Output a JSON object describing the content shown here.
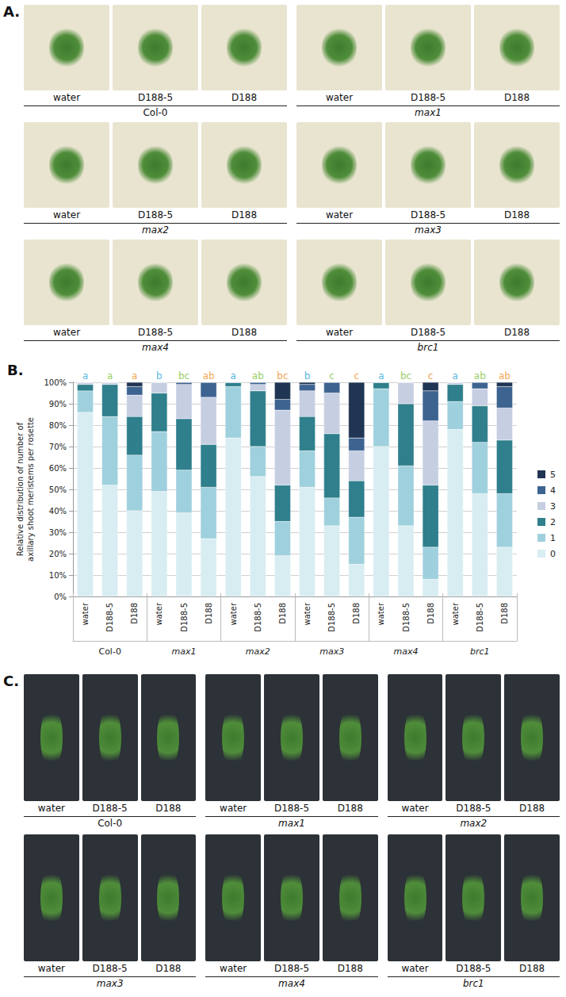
{
  "panel_a": {
    "label": "A.",
    "groups": [
      {
        "genotype": "Col-0",
        "treatments": [
          "water",
          "D188-5",
          "D188"
        ]
      },
      {
        "genotype": "max1",
        "treatments": [
          "water",
          "D188-5",
          "D188"
        ]
      },
      {
        "genotype": "max2",
        "treatments": [
          "water",
          "D188-5",
          "D188"
        ]
      },
      {
        "genotype": "max3",
        "treatments": [
          "water",
          "D188-5",
          "D188"
        ]
      },
      {
        "genotype": "max4",
        "treatments": [
          "water",
          "D188-5",
          "D188"
        ]
      },
      {
        "genotype": "brc1",
        "treatments": [
          "water",
          "D188-5",
          "D188"
        ]
      }
    ]
  },
  "chart_data": {
    "type": "bar",
    "title": "B.",
    "y_label": "Relative distribution of number of\naxillary shoot meristems per rosette",
    "categories": [
      "water",
      "D188-5",
      "D188",
      "water",
      "D188-5",
      "D188",
      "water",
      "D188-5",
      "D188",
      "water",
      "D188-5",
      "D188",
      "water",
      "D188-5",
      "D188",
      "water",
      "D188-5",
      "D188"
    ],
    "category_groups": [
      "Col-0",
      "max1",
      "max2",
      "max3",
      "max4",
      "brc1"
    ],
    "significance_letters": [
      "a",
      "a",
      "a",
      "b",
      "bc",
      "ab",
      "a",
      "ab",
      "bc",
      "b",
      "c",
      "c",
      "a",
      "bc",
      "c",
      "a",
      "ab",
      "ab"
    ],
    "stacked": true,
    "grid": true,
    "legend": "right",
    "ylim": [
      0,
      100
    ],
    "yticks": [
      {
        "value": 0,
        "label": "0%"
      },
      {
        "value": 10,
        "label": "10%"
      },
      {
        "value": 20,
        "label": "20%"
      },
      {
        "value": 30,
        "label": "30%"
      },
      {
        "value": 40,
        "label": "40%"
      },
      {
        "value": 50,
        "label": "50%"
      },
      {
        "value": 60,
        "label": "60%"
      },
      {
        "value": 70,
        "label": "70%"
      },
      {
        "value": 80,
        "label": "80%"
      },
      {
        "value": 90,
        "label": "90%"
      },
      {
        "value": 100,
        "label": "100%"
      }
    ],
    "series": [
      {
        "name": "0",
        "color": "#d8edf2",
        "values": [
          86,
          52,
          40,
          49,
          39,
          27,
          74,
          56,
          19,
          51,
          33,
          15,
          70,
          33,
          8,
          78,
          48,
          23
        ]
      },
      {
        "name": "1",
        "color": "#9fd0dd",
        "values": [
          10,
          32,
          26,
          28,
          20,
          24,
          24,
          14,
          16,
          17,
          13,
          22,
          27,
          28,
          15,
          13,
          24,
          25
        ]
      },
      {
        "name": "2",
        "color": "#2f7f8c",
        "values": [
          3,
          15,
          18,
          18,
          24,
          20,
          2,
          26,
          17,
          16,
          30,
          17,
          3,
          29,
          29,
          8,
          17,
          25
        ]
      },
      {
        "name": "3",
        "color": "#c6cee2",
        "values": [
          1,
          1,
          10,
          5,
          16,
          22,
          0,
          3,
          35,
          12,
          19,
          14,
          0,
          10,
          30,
          1,
          8,
          15
        ]
      },
      {
        "name": "4",
        "color": "#3d6390",
        "values": [
          0,
          0,
          4,
          0,
          1,
          7,
          0,
          1,
          5,
          3,
          5,
          6,
          0,
          0,
          14,
          0,
          3,
          10
        ]
      },
      {
        "name": "5",
        "color": "#1f3553",
        "values": [
          0,
          0,
          2,
          0,
          0,
          0,
          0,
          0,
          8,
          1,
          0,
          26,
          0,
          0,
          4,
          0,
          0,
          2
        ]
      }
    ]
  },
  "panel_c": {
    "label": "C.",
    "groups": [
      {
        "genotype": "Col-0",
        "treatments": [
          "water",
          "D188-5",
          "D188"
        ]
      },
      {
        "genotype": "max1",
        "treatments": [
          "water",
          "D188-5",
          "D188"
        ]
      },
      {
        "genotype": "max2",
        "treatments": [
          "water",
          "D188-5",
          "D188"
        ]
      },
      {
        "genotype": "max3",
        "treatments": [
          "water",
          "D188-5",
          "D188"
        ]
      },
      {
        "genotype": "max4",
        "treatments": [
          "water",
          "D188-5",
          "D188"
        ]
      },
      {
        "genotype": "brc1",
        "treatments": [
          "water",
          "D188-5",
          "D188"
        ]
      }
    ]
  }
}
